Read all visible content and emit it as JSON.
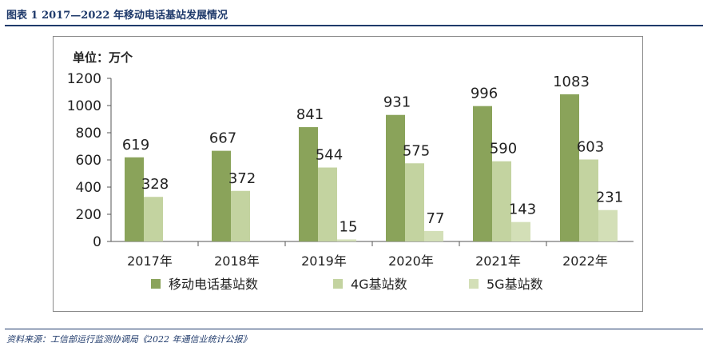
{
  "figure_title": "图表 1   2017—2022 年移动电话基站发展情况",
  "source_note": "资料来源：工信部运行监测协调局《2022 年通信业统计公报》",
  "chart_data": {
    "type": "bar",
    "unit_label": "单位：万个",
    "categories": [
      "2017年",
      "2018年",
      "2019年",
      "2020年",
      "2021年",
      "2022年"
    ],
    "series": [
      {
        "name": "移动电话基站数",
        "color": "#8aa35a",
        "values": [
          619,
          667,
          841,
          931,
          996,
          1083
        ]
      },
      {
        "name": "4G基站数",
        "color": "#c3d3a0",
        "values": [
          328,
          372,
          544,
          575,
          590,
          603
        ]
      },
      {
        "name": "5G基站数",
        "color": "#d3dfb7",
        "values": [
          null,
          null,
          15,
          77,
          143,
          231
        ]
      }
    ],
    "ylim": [
      0,
      1200
    ],
    "yticks": [
      0,
      200,
      400,
      600,
      800,
      1000,
      1200
    ],
    "legend_position": "bottom"
  }
}
